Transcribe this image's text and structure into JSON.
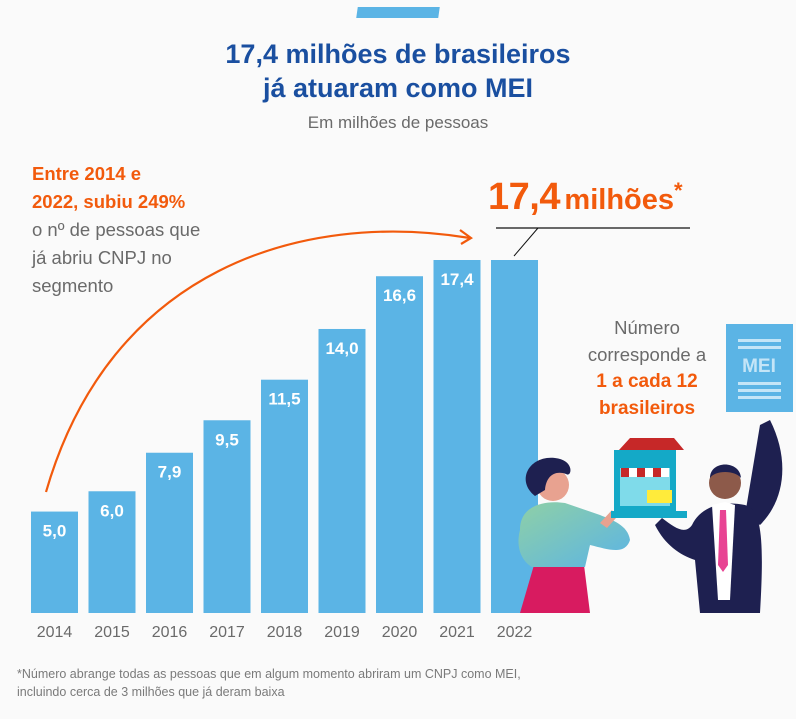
{
  "header": {
    "title_line1": "17,4 milhões de brasileiros",
    "title_line2": "já atuaram como MEI",
    "subtitle": "Em milhões de pessoas"
  },
  "left_note": {
    "highlight_line1": "Entre 2014 e",
    "highlight_line2": "2022, subiu 249%",
    "text": "o nº de pessoas que já abriu CNPJ no segmento"
  },
  "callout": {
    "number": "17,4",
    "unit": "milhões",
    "asterisk": "*"
  },
  "right_note": {
    "line1": "Número",
    "line2": "corresponde a",
    "highlight_line1": "1 a cada 12",
    "highlight_line2": "brasileiros"
  },
  "illustration": {
    "sign_text": "MEI"
  },
  "footnote": {
    "line1": "*Número abrange todas as pessoas que em algum momento abriram um CNPJ como MEI,",
    "line2": "incluindo cerca de 3 milhões que já deram baixa"
  },
  "colors": {
    "bar": "#5bb4e5",
    "title": "#1a4fa0",
    "accent": "#f25a0c",
    "text": "#6a6a6a"
  },
  "chart_data": {
    "type": "bar",
    "title": "17,4 milhões de brasileiros já atuaram como MEI",
    "subtitle": "Em milhões de pessoas",
    "xlabel": "",
    "ylabel": "",
    "categories": [
      "2014",
      "2015",
      "2016",
      "2017",
      "2018",
      "2019",
      "2020",
      "2021",
      "2022"
    ],
    "values": [
      5.0,
      6.0,
      7.9,
      9.5,
      11.5,
      14.0,
      16.6,
      17.4,
      17.4
    ],
    "data_labels": [
      "5,0",
      "6,0",
      "7,9",
      "9,5",
      "11,5",
      "14,0",
      "16,6",
      "17,4",
      ""
    ],
    "ylim": [
      0,
      17.4
    ],
    "grid": false,
    "annotations": [
      "Entre 2014 e 2022, subiu 249%",
      "17,4 milhões*"
    ]
  }
}
